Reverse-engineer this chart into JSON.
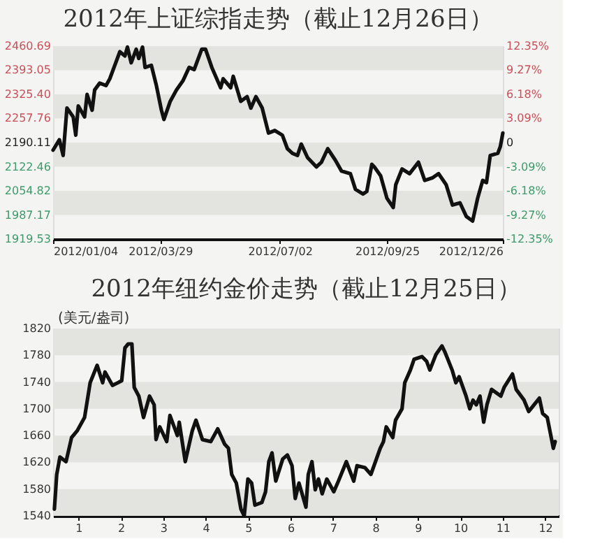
{
  "chart_data": [
    {
      "type": "line",
      "title": "2012年上证综指走势（截止12月26日）",
      "x": [
        "2012-01-04",
        "2012-01-09",
        "2012-01-12",
        "2012-01-15",
        "2012-01-20",
        "2012-01-22",
        "2012-01-24",
        "2012-01-29",
        "2012-01-31",
        "2012-02-04",
        "2012-02-06",
        "2012-02-10",
        "2012-02-15",
        "2012-02-18",
        "2012-02-22",
        "2012-02-26",
        "2012-03-01",
        "2012-03-03",
        "2012-03-06",
        "2012-03-10",
        "2012-03-12",
        "2012-03-15",
        "2012-03-17",
        "2012-03-22",
        "2012-03-26",
        "2012-03-30",
        "2012-04-01",
        "2012-04-06",
        "2012-04-11",
        "2012-04-16",
        "2012-04-21",
        "2012-04-25",
        "2012-05-01",
        "2012-05-04",
        "2012-05-09",
        "2012-05-16",
        "2012-05-18",
        "2012-05-24",
        "2012-05-26",
        "2012-06-01",
        "2012-06-06",
        "2012-06-09",
        "2012-06-13",
        "2012-06-18",
        "2012-06-23",
        "2012-06-28",
        "2012-07-04",
        "2012-07-08",
        "2012-07-12",
        "2012-07-16",
        "2012-07-19",
        "2012-07-24",
        "2012-07-31",
        "2012-08-04",
        "2012-08-09",
        "2012-08-15",
        "2012-08-20",
        "2012-08-27",
        "2012-08-31",
        "2012-09-06",
        "2012-09-09",
        "2012-09-13",
        "2012-09-15",
        "2012-09-20",
        "2012-09-25",
        "2012-09-30",
        "2012-10-02",
        "2012-10-07",
        "2012-10-13",
        "2012-10-20",
        "2012-10-25",
        "2012-10-31",
        "2012-11-05",
        "2012-11-11",
        "2012-11-16",
        "2012-11-22",
        "2012-11-27",
        "2012-12-02",
        "2012-12-06",
        "2012-12-10",
        "2012-12-13",
        "2012-12-16",
        "2012-12-22",
        "2012-12-24",
        "2012-12-26"
      ],
      "series": [
        {
          "color": "#111111",
          "values": [
            2169,
            2198,
            2154,
            2287,
            2262,
            2211,
            2293,
            2262,
            2325,
            2281,
            2338,
            2357,
            2350,
            2369,
            2407,
            2445,
            2433,
            2458,
            2414,
            2452,
            2426,
            2458,
            2401,
            2407,
            2350,
            2281,
            2255,
            2306,
            2338,
            2363,
            2401,
            2395,
            2452,
            2452,
            2401,
            2344,
            2369,
            2344,
            2376,
            2306,
            2319,
            2287,
            2319,
            2287,
            2217,
            2224,
            2211,
            2173,
            2160,
            2154,
            2186,
            2148,
            2122,
            2135,
            2173,
            2141,
            2110,
            2103,
            2059,
            2046,
            2053,
            2129,
            2122,
            2097,
            2034,
            2008,
            2072,
            2116,
            2103,
            2135,
            2084,
            2091,
            2103,
            2072,
            2015,
            2021,
            1983,
            1970,
            2034,
            2084,
            2078,
            2154,
            2160,
            2179,
            2217
          ]
        }
      ],
      "xlim": [
        "2012-01-04",
        "2012-12-26"
      ],
      "xticks": [
        {
          "value": "2012-01-04",
          "label": "2012/01/04"
        },
        {
          "value": "2012-03-29",
          "label": "2012/03/29"
        },
        {
          "value": "2012-07-02",
          "label": "2012/07/02"
        },
        {
          "value": "2012-09-25",
          "label": "2012/09/25"
        },
        {
          "value": "2012-12-26",
          "label": "2012/12/26"
        }
      ],
      "ylim": [
        1919.53,
        2460.69
      ],
      "yticks": [
        1919.53,
        1987.17,
        2054.82,
        2122.46,
        2190.11,
        2257.76,
        {
          "value": 2325.4,
          "label": "2325.40"
        },
        2393.05,
        2460.69
      ],
      "y2lim": [
        -12.35,
        12.35
      ],
      "y2ticks": [
        {
          "value": -12.35,
          "label": "-12.35%"
        },
        {
          "value": -9.27,
          "label": "-9.27%"
        },
        {
          "value": -6.18,
          "label": "-6.18%"
        },
        {
          "value": -3.09,
          "label": "-3.09%"
        },
        0,
        {
          "value": 3.09,
          "label": "3.09%"
        },
        {
          "value": 6.18,
          "label": "6.18%"
        },
        {
          "value": 9.27,
          "label": "9.27%"
        },
        {
          "value": 12.35,
          "label": "12.35%"
        }
      ],
      "bands": [
        {
          "axis": "y",
          "from": 2393.05,
          "to": 2460.69,
          "color": "#e3e3e0"
        },
        {
          "axis": "y",
          "from": 2257.76,
          "to": 2325.4,
          "color": "#e3e3e0"
        },
        {
          "axis": "y",
          "from": 2122.46,
          "to": 2190.11,
          "color": "#e3e3e0"
        },
        {
          "axis": "y",
          "from": 1987.17,
          "to": 2054.82,
          "color": "#e3e3e0"
        }
      ]
    },
    {
      "type": "line",
      "title": "2012年纽约金价走势（截止12月25日）",
      "ylabel": "(美元/盎司)",
      "x": [
        0.431,
        0.486,
        0.562,
        0.705,
        0.836,
        0.967,
        1.142,
        1.274,
        1.438,
        1.569,
        1.624,
        1.799,
        1.93,
        2.018,
        2.094,
        2.171,
        2.258,
        2.313,
        2.422,
        2.532,
        2.674,
        2.783,
        2.827,
        2.915,
        3.079,
        3.155,
        3.33,
        3.374,
        3.516,
        3.681,
        3.768,
        3.921,
        4.118,
        4.282,
        4.446,
        4.534,
        4.611,
        4.72,
        4.829,
        4.906,
        4.993,
        5.081,
        5.158,
        5.322,
        5.409,
        5.486,
        5.562,
        5.65,
        5.814,
        5.923,
        6.033,
        6.109,
        6.197,
        6.361,
        6.416,
        6.503,
        6.58,
        6.656,
        6.744,
        6.853,
        7.018,
        7.127,
        7.313,
        7.488,
        7.565,
        7.751,
        7.893,
        8.112,
        8.188,
        8.254,
        8.407,
        8.473,
        8.626,
        8.691,
        8.823,
        8.91,
        9.096,
        9.206,
        9.282,
        9.425,
        9.567,
        9.643,
        9.807,
        9.895,
        9.972,
        10.136,
        10.223,
        10.3,
        10.376,
        10.464,
        10.551,
        10.628,
        10.737,
        10.956,
        11.033,
        11.23,
        11.317,
        11.503,
        11.613,
        11.864,
        11.941,
        12.05,
        12.193,
        12.236
      ],
      "series": [
        {
          "color": "#111111",
          "values": [
            1550,
            1602,
            1628,
            1621,
            1657,
            1667,
            1687,
            1739,
            1765,
            1739,
            1755,
            1735,
            1739,
            1742,
            1791,
            1797,
            1797,
            1732,
            1719,
            1687,
            1719,
            1706,
            1654,
            1673,
            1651,
            1690,
            1660,
            1680,
            1621,
            1667,
            1683,
            1654,
            1651,
            1670,
            1647,
            1641,
            1602,
            1589,
            1550,
            1540,
            1595,
            1589,
            1556,
            1560,
            1576,
            1621,
            1634,
            1592,
            1625,
            1631,
            1615,
            1566,
            1589,
            1553,
            1602,
            1621,
            1579,
            1595,
            1573,
            1595,
            1576,
            1592,
            1621,
            1592,
            1615,
            1612,
            1602,
            1641,
            1651,
            1673,
            1657,
            1683,
            1700,
            1739,
            1758,
            1774,
            1778,
            1771,
            1758,
            1781,
            1794,
            1784,
            1758,
            1739,
            1748,
            1719,
            1700,
            1713,
            1706,
            1719,
            1680,
            1706,
            1729,
            1719,
            1732,
            1752,
            1729,
            1713,
            1696,
            1716,
            1693,
            1687,
            1641,
            1651
          ]
        }
      ],
      "xlim": [
        0.4,
        12.32
      ],
      "xticks": [
        1,
        2,
        3,
        4,
        5,
        6,
        7,
        8,
        9,
        10,
        11,
        12
      ],
      "ylim": [
        1540,
        1820
      ],
      "yticks": [
        1540,
        1580,
        1620,
        1660,
        1700,
        1740,
        1780,
        1820
      ],
      "bands": [
        {
          "axis": "y",
          "from": 1780,
          "to": 1820,
          "color": "#e3e3e0"
        },
        {
          "axis": "y",
          "from": 1700,
          "to": 1740,
          "color": "#e3e3e0"
        },
        {
          "axis": "y",
          "from": 1620,
          "to": 1660,
          "color": "#e3e3e0"
        },
        {
          "axis": "y",
          "from": 1540,
          "to": 1580,
          "color": "#e3e3e0"
        }
      ]
    }
  ]
}
